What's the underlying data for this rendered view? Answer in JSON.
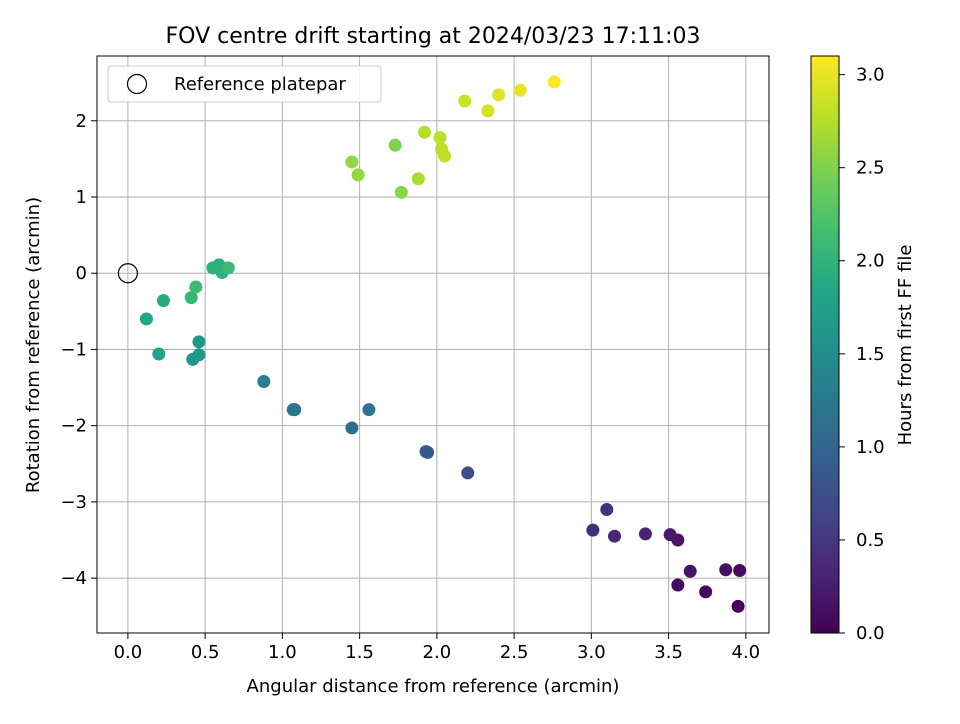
{
  "chart_data": {
    "type": "scatter",
    "title": "FOV centre drift starting at 2024/03/23 17:11:03",
    "xlabel": "Angular distance from reference (arcmin)",
    "ylabel": "Rotation from reference (arcmin)",
    "xlim": [
      -0.2,
      4.15
    ],
    "ylim": [
      -4.72,
      2.85
    ],
    "x_ticks": [
      0.0,
      0.5,
      1.0,
      1.5,
      2.0,
      2.5,
      3.0,
      3.5,
      4.0
    ],
    "x_tick_labels": [
      "0.0",
      "0.5",
      "1.0",
      "1.5",
      "2.0",
      "2.5",
      "3.0",
      "3.5",
      "4.0"
    ],
    "y_ticks": [
      -4,
      -3,
      -2,
      -1,
      0,
      1,
      2
    ],
    "y_tick_labels": [
      "−4",
      "−3",
      "−2",
      "−1",
      "0",
      "1",
      "2"
    ],
    "grid": true,
    "colormap": "viridis",
    "colorbar": {
      "label": "Hours from first FF file",
      "range": [
        0.0,
        3.1
      ],
      "ticks": [
        0.0,
        0.5,
        1.0,
        1.5,
        2.0,
        2.5,
        3.0
      ],
      "tick_labels": [
        "0.0",
        "0.5",
        "1.0",
        "1.5",
        "2.0",
        "2.5",
        "3.0"
      ]
    },
    "legend": {
      "location": "upper-left",
      "entries": [
        {
          "label": "Reference platepar",
          "marker": "open-circle"
        }
      ]
    },
    "reference_point": {
      "x": 0.0,
      "y": 0.0
    },
    "series": [
      {
        "points": [
          {
            "x": 3.95,
            "y": -4.37,
            "c": 0.0
          },
          {
            "x": 3.74,
            "y": -4.18,
            "c": 0.05
          },
          {
            "x": 3.56,
            "y": -4.09,
            "c": 0.08
          },
          {
            "x": 3.96,
            "y": -3.9,
            "c": 0.1
          },
          {
            "x": 3.87,
            "y": -3.89,
            "c": 0.12
          },
          {
            "x": 3.64,
            "y": -3.91,
            "c": 0.15
          },
          {
            "x": 3.56,
            "y": -3.5,
            "c": 0.18
          },
          {
            "x": 3.51,
            "y": -3.43,
            "c": 0.22
          },
          {
            "x": 3.35,
            "y": -3.42,
            "c": 0.3
          },
          {
            "x": 3.15,
            "y": -3.45,
            "c": 0.35
          },
          {
            "x": 3.01,
            "y": -3.37,
            "c": 0.4
          },
          {
            "x": 3.1,
            "y": -3.1,
            "c": 0.45
          },
          {
            "x": 2.2,
            "y": -2.62,
            "c": 0.75
          },
          {
            "x": 1.93,
            "y": -2.34,
            "c": 0.85
          },
          {
            "x": 1.94,
            "y": -2.35,
            "c": 0.85
          },
          {
            "x": 1.45,
            "y": -2.03,
            "c": 1.1
          },
          {
            "x": 1.56,
            "y": -1.79,
            "c": 1.2
          },
          {
            "x": 1.07,
            "y": -1.79,
            "c": 1.2
          },
          {
            "x": 1.08,
            "y": -1.79,
            "c": 1.22
          },
          {
            "x": 0.88,
            "y": -1.42,
            "c": 1.3
          },
          {
            "x": 0.42,
            "y": -1.13,
            "c": 1.6
          },
          {
            "x": 0.46,
            "y": -1.07,
            "c": 1.62
          },
          {
            "x": 0.46,
            "y": -0.9,
            "c": 1.65
          },
          {
            "x": 0.2,
            "y": -1.06,
            "c": 1.8
          },
          {
            "x": 0.12,
            "y": -0.6,
            "c": 1.85
          },
          {
            "x": 0.23,
            "y": -0.36,
            "c": 1.9
          },
          {
            "x": 0.41,
            "y": -0.32,
            "c": 2.05
          },
          {
            "x": 0.44,
            "y": -0.18,
            "c": 2.1
          },
          {
            "x": 0.55,
            "y": 0.07,
            "c": 1.95
          },
          {
            "x": 0.59,
            "y": 0.11,
            "c": 1.97
          },
          {
            "x": 0.61,
            "y": 0.01,
            "c": 2.0
          },
          {
            "x": 0.65,
            "y": 0.07,
            "c": 2.1
          },
          {
            "x": 1.45,
            "y": 1.46,
            "c": 2.6
          },
          {
            "x": 1.49,
            "y": 1.29,
            "c": 2.62
          },
          {
            "x": 1.73,
            "y": 1.68,
            "c": 2.5
          },
          {
            "x": 1.77,
            "y": 1.06,
            "c": 2.55
          },
          {
            "x": 1.88,
            "y": 1.24,
            "c": 2.7
          },
          {
            "x": 1.92,
            "y": 1.85,
            "c": 2.75
          },
          {
            "x": 2.02,
            "y": 1.78,
            "c": 2.78
          },
          {
            "x": 2.03,
            "y": 1.63,
            "c": 2.78
          },
          {
            "x": 2.05,
            "y": 1.54,
            "c": 2.8
          },
          {
            "x": 2.18,
            "y": 2.26,
            "c": 2.85
          },
          {
            "x": 2.33,
            "y": 2.13,
            "c": 2.9
          },
          {
            "x": 2.4,
            "y": 2.34,
            "c": 2.95
          },
          {
            "x": 2.54,
            "y": 2.4,
            "c": 3.0
          },
          {
            "x": 2.76,
            "y": 2.51,
            "c": 3.1
          }
        ]
      }
    ]
  }
}
